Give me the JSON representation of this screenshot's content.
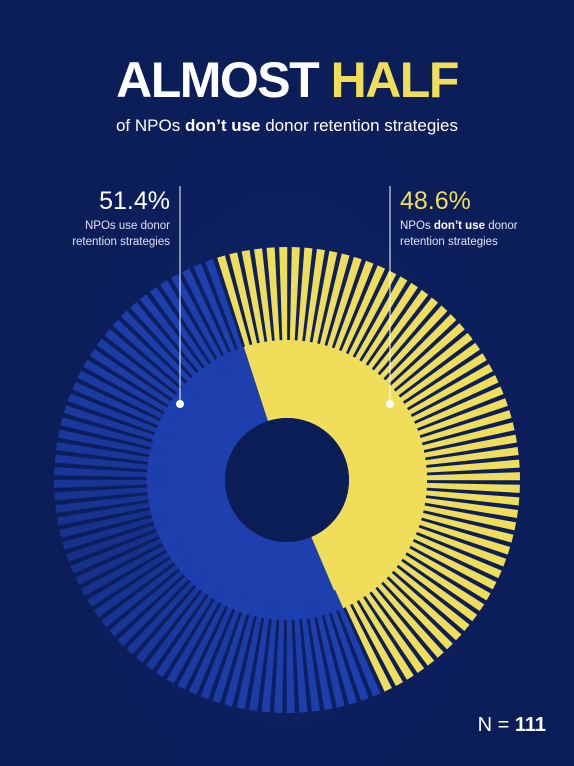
{
  "headline": {
    "word1": "ALMOST",
    "word2": "HALF"
  },
  "subtitle": {
    "pre": "of NPOs ",
    "bold": "don’t use",
    "post": " donor retention strategies"
  },
  "chart_data": {
    "type": "pie",
    "variant": "radial-burst-donut",
    "slices": [
      {
        "label": "NPOs use donor retention strategies",
        "percent": 51.4,
        "color": "#1e3fae"
      },
      {
        "label": "NPOs don’t use donor retention strategies",
        "percent": 48.6,
        "color": "#f0de5a"
      }
    ]
  },
  "labels": {
    "left": {
      "percent": "51.4%",
      "line1": "NPOs use donor",
      "line2": "retention strategies"
    },
    "right": {
      "percent": "48.6%",
      "line1_pre": "NPOs ",
      "line1_bold": "don’t use",
      "line1_post": " donor",
      "line2": "retention strategies"
    }
  },
  "footer": {
    "n_prefix": "N = ",
    "n_value": "111"
  },
  "colors": {
    "background": "#0b1d57",
    "accent_yellow": "#f0de5a",
    "accent_blue": "#1e3fae"
  }
}
